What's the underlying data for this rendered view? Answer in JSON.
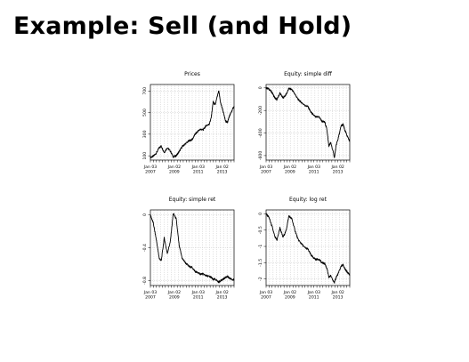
{
  "slide": {
    "title": "Example: Sell (and Hold)"
  },
  "x_ticks": [
    "Jan 03\n2007",
    "Jan 02\n2009",
    "Jan 03\n2011",
    "Jan 02\n2013"
  ],
  "chart_data": [
    {
      "type": "line",
      "title": "Prices",
      "xlabel": "",
      "ylabel": "",
      "x_tick_labels": [
        "Jan 03 2007",
        "Jan 02 2009",
        "Jan 03 2011",
        "Jan 02 2013"
      ],
      "yticks": [
        100,
        300,
        500,
        700
      ],
      "ylim": [
        60,
        760
      ],
      "grid": true,
      "series": [
        {
          "x": [
            "2007-01-03",
            "2007-04-01",
            "2007-07-01",
            "2007-10-01",
            "2007-12-01",
            "2008-03-01",
            "2008-06-01",
            "2008-09-01",
            "2008-12-01",
            "2009-03-01",
            "2009-06-01",
            "2009-09-01",
            "2009-12-01",
            "2010-04-01",
            "2010-07-01",
            "2010-10-01",
            "2010-12-01",
            "2011-03-01",
            "2011-06-01",
            "2011-09-01",
            "2011-12-01",
            "2012-02-01",
            "2012-04-01",
            "2012-06-01",
            "2012-09-20",
            "2012-11-15",
            "2013-01-15",
            "2013-04-15",
            "2013-06-15",
            "2013-08-01",
            "2013-10-01",
            "2013-12-31"
          ],
          "y": [
            85,
            95,
            125,
            175,
            190,
            130,
            175,
            145,
            90,
            100,
            140,
            185,
            210,
            240,
            250,
            300,
            320,
            345,
            340,
            380,
            390,
            450,
            600,
            570,
            700,
            590,
            530,
            420,
            410,
            460,
            500,
            560
          ]
        }
      ]
    },
    {
      "type": "line",
      "title": "Equity: simple diff",
      "xlabel": "",
      "ylabel": "",
      "x_tick_labels": [
        "Jan 03 2007",
        "Jan 02 2009",
        "Jan 03 2011",
        "Jan 02 2013"
      ],
      "yticks": [
        0,
        -200,
        -400,
        -600
      ],
      "ylim": [
        -640,
        30
      ],
      "grid": true,
      "series": [
        {
          "x": [
            "2007-01-03",
            "2007-04-01",
            "2007-07-01",
            "2007-10-01",
            "2007-12-01",
            "2008-03-01",
            "2008-06-01",
            "2008-09-01",
            "2008-12-01",
            "2009-03-01",
            "2009-06-01",
            "2009-09-01",
            "2009-12-01",
            "2010-04-01",
            "2010-07-01",
            "2010-10-01",
            "2010-12-01",
            "2011-03-01",
            "2011-06-01",
            "2011-09-01",
            "2011-12-01",
            "2012-02-01",
            "2012-04-01",
            "2012-06-01",
            "2012-09-20",
            "2012-11-15",
            "2013-01-15",
            "2013-04-15",
            "2013-06-15",
            "2013-08-01",
            "2013-10-01",
            "2013-12-31"
          ],
          "y": [
            0,
            -10,
            -40,
            -90,
            -105,
            -45,
            -90,
            -60,
            -5,
            -15,
            -55,
            -100,
            -125,
            -155,
            -165,
            -215,
            -235,
            -260,
            -255,
            -295,
            -305,
            -365,
            -515,
            -485,
            -615,
            -505,
            -445,
            -335,
            -325,
            -375,
            -415,
            -475
          ]
        }
      ]
    },
    {
      "type": "line",
      "title": "Equity: simple ret",
      "xlabel": "",
      "ylabel": "",
      "x_tick_labels": [
        "Jan 03 2007",
        "Jan 02 2009",
        "Jan 03 2011",
        "Jan 02 2013"
      ],
      "yticks": [
        0.0,
        -0.4,
        -0.8
      ],
      "ylim": [
        -0.86,
        0.06
      ],
      "grid": true,
      "series": [
        {
          "x": [
            "2007-01-03",
            "2007-04-01",
            "2007-07-01",
            "2007-10-01",
            "2007-12-01",
            "2008-03-01",
            "2008-06-01",
            "2008-09-01",
            "2008-12-01",
            "2009-03-01",
            "2009-06-01",
            "2009-09-01",
            "2009-12-01",
            "2010-04-01",
            "2010-07-01",
            "2010-10-01",
            "2010-12-01",
            "2011-03-01",
            "2011-06-01",
            "2011-09-01",
            "2011-12-01",
            "2012-02-01",
            "2012-04-01",
            "2012-06-01",
            "2012-09-20",
            "2012-11-15",
            "2013-01-15",
            "2013-04-15",
            "2013-06-15",
            "2013-08-01",
            "2013-10-01",
            "2013-12-31"
          ],
          "y": [
            0.0,
            -0.1,
            -0.3,
            -0.53,
            -0.56,
            -0.28,
            -0.47,
            -0.33,
            0.02,
            -0.05,
            -0.38,
            -0.53,
            -0.58,
            -0.63,
            -0.64,
            -0.69,
            -0.7,
            -0.72,
            -0.72,
            -0.74,
            -0.75,
            -0.76,
            -0.79,
            -0.78,
            -0.82,
            -0.8,
            -0.79,
            -0.76,
            -0.75,
            -0.77,
            -0.78,
            -0.79
          ]
        }
      ]
    },
    {
      "type": "line",
      "title": "Equity: log ret",
      "xlabel": "",
      "ylabel": "",
      "x_tick_labels": [
        "Jan 03 2007",
        "Jan 02 2009",
        "Jan 03 2011",
        "Jan 02 2013"
      ],
      "yticks": [
        0.0,
        -0.5,
        -1.0,
        -1.5,
        -2.0
      ],
      "ylim": [
        -2.2,
        0.12
      ],
      "grid": true,
      "series": [
        {
          "x": [
            "2007-01-03",
            "2007-04-01",
            "2007-07-01",
            "2007-10-01",
            "2007-12-01",
            "2008-03-01",
            "2008-06-01",
            "2008-09-01",
            "2008-12-01",
            "2009-03-01",
            "2009-06-01",
            "2009-09-01",
            "2009-12-01",
            "2010-04-01",
            "2010-07-01",
            "2010-10-01",
            "2010-12-01",
            "2011-03-01",
            "2011-06-01",
            "2011-09-01",
            "2011-12-01",
            "2012-02-01",
            "2012-04-01",
            "2012-06-01",
            "2012-09-20",
            "2012-11-15",
            "2013-01-15",
            "2013-04-15",
            "2013-06-15",
            "2013-08-01",
            "2013-10-01",
            "2013-12-31"
          ],
          "y": [
            0.0,
            -0.11,
            -0.38,
            -0.72,
            -0.8,
            -0.43,
            -0.72,
            -0.53,
            -0.06,
            -0.16,
            -0.5,
            -0.78,
            -0.9,
            -1.04,
            -1.08,
            -1.26,
            -1.33,
            -1.4,
            -1.39,
            -1.5,
            -1.53,
            -1.67,
            -1.95,
            -1.9,
            -2.11,
            -1.94,
            -1.83,
            -1.6,
            -1.57,
            -1.69,
            -1.77,
            -1.88
          ]
        }
      ]
    }
  ]
}
